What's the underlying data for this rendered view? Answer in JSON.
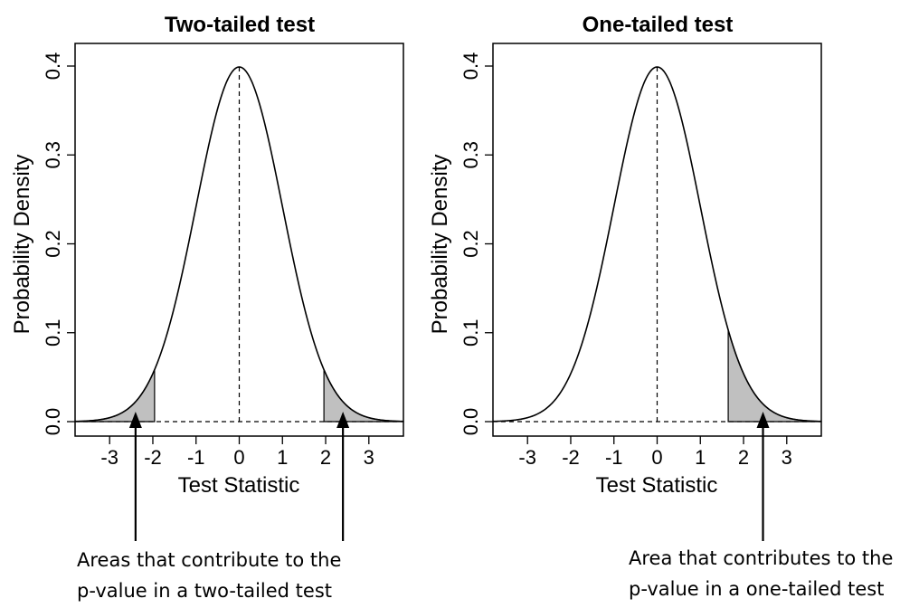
{
  "chart_data": [
    {
      "type": "area",
      "title": "Two-tailed test",
      "xlabel": "Test Statistic",
      "ylabel": "Probability Density",
      "xlim": [
        -3.8,
        3.8
      ],
      "ylim": [
        0,
        0.4
      ],
      "x_ticks": [
        -3,
        -2,
        -1,
        0,
        1,
        2,
        3
      ],
      "y_ticks": [
        0.0,
        0.1,
        0.2,
        0.3,
        0.4
      ],
      "y_tick_labels": [
        "0.0",
        "0.1",
        "0.2",
        "0.3",
        "0.4"
      ],
      "distribution": "standard normal",
      "shaded_regions": [
        [
          -3.8,
          -1.96
        ],
        [
          1.96,
          3.8
        ]
      ],
      "reference_lines": {
        "vertical_x": 0,
        "horizontal_y": 0
      },
      "shade_color": "#c0c0c0",
      "annotation": {
        "lines": [
          "Areas that contribute to the",
          "p-value in a two-tailed test"
        ],
        "arrow_targets_x": [
          -2.4,
          2.4
        ]
      }
    },
    {
      "type": "area",
      "title": "One-tailed test",
      "xlabel": "Test Statistic",
      "ylabel": "Probability Density",
      "xlim": [
        -3.8,
        3.8
      ],
      "ylim": [
        0,
        0.4
      ],
      "x_ticks": [
        -3,
        -2,
        -1,
        0,
        1,
        2,
        3
      ],
      "y_ticks": [
        0.0,
        0.1,
        0.2,
        0.3,
        0.4
      ],
      "y_tick_labels": [
        "0.0",
        "0.1",
        "0.2",
        "0.3",
        "0.4"
      ],
      "distribution": "standard normal",
      "shaded_regions": [
        [
          1.645,
          3.8
        ]
      ],
      "reference_lines": {
        "vertical_x": 0,
        "horizontal_y": 0
      },
      "shade_color": "#c0c0c0",
      "annotation": {
        "lines": [
          "Area that contributes to the",
          "p-value in a one-tailed test"
        ],
        "arrow_targets_x": [
          2.45
        ]
      }
    }
  ]
}
